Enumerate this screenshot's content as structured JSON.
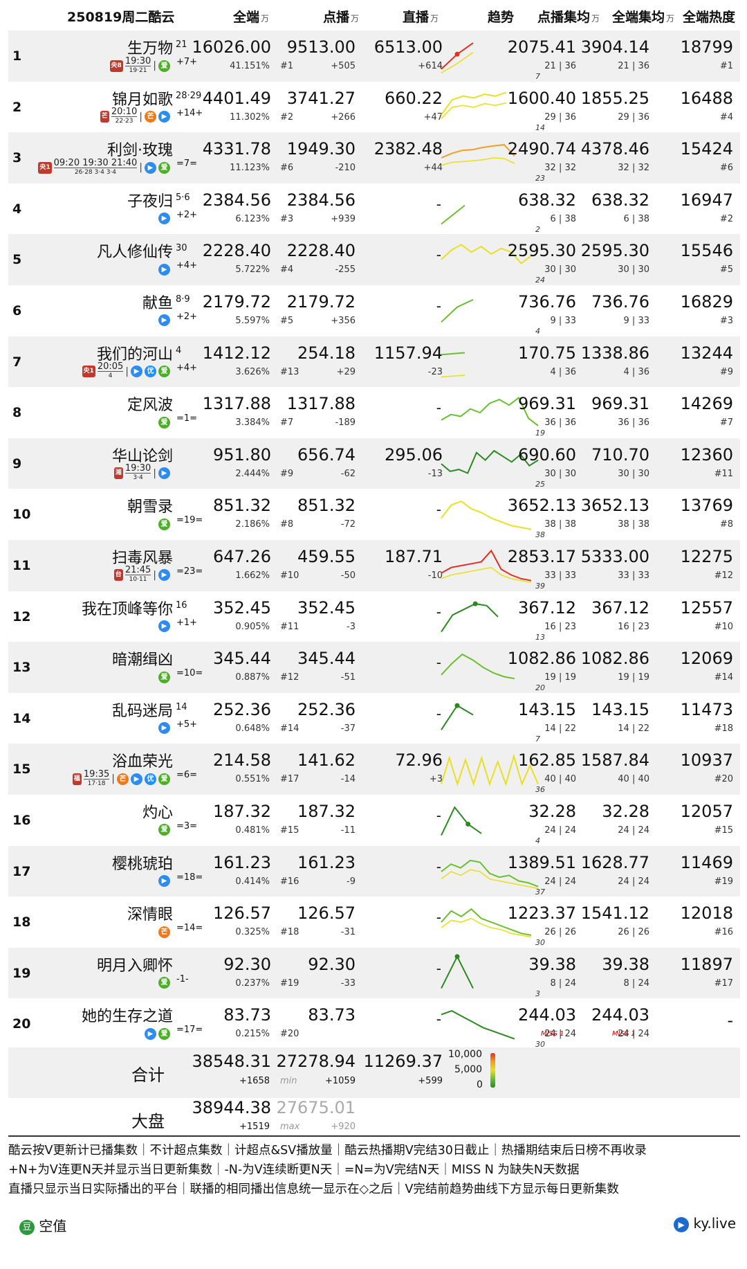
{
  "header": {
    "title": "250819周二酷云",
    "col_all": "全端",
    "col_vod": "点播",
    "col_live": "直播",
    "col_trend": "趋势",
    "col_vod_ep": "点播集均",
    "col_all_ep": "全端集均",
    "col_heat": "全端热度",
    "unit": "万"
  },
  "colors": {
    "green": "#6abf2e",
    "orange": "#f0a020",
    "red": "#e03020",
    "yellow": "#e8e020",
    "darkgreen": "#2a8a20"
  },
  "rows": [
    {
      "rank": "1",
      "name": "生万物",
      "ep": "21",
      "change": "+7+",
      "platform_icons": [
        "iqiyi-icon"
      ],
      "airing": {
        "channel": "央8",
        "time": "19:30",
        "eps": "19·21"
      },
      "all": "16026.00",
      "share": "41.151%",
      "vod": "9513.00",
      "vod_rank": "#1",
      "vod_delta": "+505",
      "live": "6513.00",
      "live_delta": "+614",
      "vod_ep": "2075.41",
      "vod_ep_sub": "21 | 36",
      "all_ep": "3904.14",
      "all_ep_sub": "21 | 36",
      "heat": "18799",
      "heat_rank": "#1",
      "trend_end": "7",
      "trend": [
        0.15,
        0.55,
        0.85
      ],
      "trend2": [
        0.05,
        0.3,
        0.6
      ],
      "line_color": "red"
    },
    {
      "rank": "2",
      "name": "锦月如歌",
      "ep": "28·29",
      "change": "+14+",
      "platform_icons": [
        "mango-icon",
        "tencent-icon"
      ],
      "airing": {
        "channel": "芒",
        "time": "20:10",
        "eps": "22·23"
      },
      "all": "4401.49",
      "share": "11.302%",
      "vod": "3741.27",
      "vod_rank": "#2",
      "vod_delta": "+266",
      "live": "660.22",
      "live_delta": "+47",
      "vod_ep": "1600.40",
      "vod_ep_sub": "29 | 36",
      "all_ep": "1855.25",
      "all_ep_sub": "29 | 36",
      "heat": "16488",
      "heat_rank": "#4",
      "trend_end": "14",
      "trend": [
        0.3,
        0.7,
        0.8,
        0.75,
        0.85,
        0.8,
        0.9
      ],
      "trend2": [
        0.2,
        0.5,
        0.55,
        0.5,
        0.6,
        0.55,
        0.62
      ],
      "line_color": "yellow"
    },
    {
      "rank": "3",
      "name": "利剑·玫瑰",
      "ep": "",
      "change": "=7=",
      "platform_icons": [
        "tencent-icon",
        "iqiyi-icon"
      ],
      "airing": {
        "channel": "央1",
        "time": "09:20 19:30 21:40",
        "eps": "26·28 3·4 3·4"
      },
      "all": "4331.78",
      "share": "11.123%",
      "vod": "1949.30",
      "vod_rank": "#6",
      "vod_delta": "-210",
      "live": "2382.48",
      "live_delta": "+44",
      "vod_ep": "2490.74",
      "vod_ep_sub": "32 | 32",
      "all_ep": "4378.46",
      "all_ep_sub": "32 | 32",
      "heat": "15424",
      "heat_rank": "#6",
      "trend_end": "23",
      "trend": [
        0.5,
        0.62,
        0.7,
        0.72,
        0.78,
        0.82,
        0.85,
        0.55
      ],
      "trend2": [
        0.3,
        0.38,
        0.4,
        0.42,
        0.45,
        0.5,
        0.48,
        0.35
      ],
      "line_color": "orange"
    },
    {
      "rank": "4",
      "name": "子夜归",
      "ep": "5·6",
      "change": "+2+",
      "platform_icons": [
        "tencent-icon"
      ],
      "airing": null,
      "all": "2384.56",
      "share": "6.123%",
      "vod": "2384.56",
      "vod_rank": "#3",
      "vod_delta": "+939",
      "live": "-",
      "live_delta": "",
      "vod_ep": "638.32",
      "vod_ep_sub": "6 | 38",
      "all_ep": "638.32",
      "all_ep_sub": "6 | 38",
      "heat": "16947",
      "heat_rank": "#2",
      "trend_end": "2",
      "trend": [
        0.1,
        0.6
      ],
      "trend2": [],
      "line_color": "green"
    },
    {
      "rank": "5",
      "name": "凡人修仙传",
      "ep": "30",
      "change": "+4+",
      "platform_icons": [
        "tencent-icon"
      ],
      "airing": null,
      "all": "2228.40",
      "share": "5.722%",
      "vod": "2228.40",
      "vod_rank": "#4",
      "vod_delta": "-255",
      "live": "-",
      "live_delta": "",
      "vod_ep": "2595.30",
      "vod_ep_sub": "30 | 30",
      "all_ep": "2595.30",
      "all_ep_sub": "30 | 30",
      "heat": "15546",
      "heat_rank": "#5",
      "trend_end": "24",
      "trend": [
        0.5,
        0.75,
        0.9,
        0.7,
        0.85,
        0.65,
        0.8,
        0.7,
        0.4,
        0.6
      ],
      "trend2": [],
      "line_color": "yellow"
    },
    {
      "rank": "6",
      "name": "献鱼",
      "ep": "8·9",
      "change": "+2+",
      "platform_icons": [
        "tencent-icon"
      ],
      "airing": null,
      "all": "2179.72",
      "share": "5.597%",
      "vod": "2179.72",
      "vod_rank": "#5",
      "vod_delta": "+356",
      "live": "-",
      "live_delta": "",
      "vod_ep": "736.76",
      "vod_ep_sub": "9 | 33",
      "all_ep": "736.76",
      "all_ep_sub": "9 | 33",
      "heat": "16829",
      "heat_rank": "#3",
      "trend_end": "4",
      "trend": [
        0.2,
        0.6,
        0.8
      ],
      "trend2": [],
      "line_color": "green"
    },
    {
      "rank": "7",
      "name": "我们的河山",
      "ep": "4",
      "change": "+4+",
      "platform_icons": [
        "tencent-icon",
        "youku-icon",
        "iqiyi-icon"
      ],
      "airing": {
        "channel": "央1",
        "time": "20:05",
        "eps": "4"
      },
      "all": "1412.12",
      "share": "3.626%",
      "vod": "254.18",
      "vod_rank": "#13",
      "vod_delta": "+29",
      "live": "1157.94",
      "live_delta": "-23",
      "vod_ep": "170.75",
      "vod_ep_sub": "4 | 36",
      "all_ep": "1338.86",
      "all_ep_sub": "4 | 36",
      "heat": "13244",
      "heat_rank": "#9",
      "trend_end": "",
      "trend": [
        0.7,
        0.75
      ],
      "trend2": [
        0.1,
        0.15
      ],
      "line_color": "green"
    },
    {
      "rank": "8",
      "name": "定风波",
      "ep": "",
      "change": "=1=",
      "platform_icons": [
        "iqiyi-icon"
      ],
      "airing": null,
      "all": "1317.88",
      "share": "3.384%",
      "vod": "1317.88",
      "vod_rank": "#7",
      "vod_delta": "-189",
      "live": "-",
      "live_delta": "",
      "vod_ep": "969.31",
      "vod_ep_sub": "36 | 36",
      "all_ep": "969.31",
      "all_ep_sub": "36 | 36",
      "heat": "14269",
      "heat_rank": "#7",
      "trend_end": "19",
      "trend": [
        0.3,
        0.45,
        0.4,
        0.6,
        0.5,
        0.75,
        0.85,
        0.7,
        0.9,
        0.35,
        0.15
      ],
      "trend2": [],
      "line_color": "green"
    },
    {
      "rank": "9",
      "name": "华山论剑",
      "ep": "",
      "change": "",
      "platform_icons": [
        "tencent-icon"
      ],
      "airing": {
        "channel": "湘",
        "time": "19:30",
        "eps": "3·4"
      },
      "all": "951.80",
      "share": "2.444%",
      "vod": "656.74",
      "vod_rank": "#9",
      "vod_delta": "-62",
      "live": "295.06",
      "live_delta": "-13",
      "vod_ep": "690.60",
      "vod_ep_sub": "30 | 30",
      "all_ep": "710.70",
      "all_ep_sub": "30 | 30",
      "heat": "12360",
      "heat_rank": "#11",
      "trend_end": "25",
      "trend": [
        0.5,
        0.3,
        0.35,
        0.25,
        0.8,
        0.6,
        0.85,
        0.7,
        0.55,
        0.75,
        0.45,
        0.6
      ],
      "trend2": [],
      "line_color": "darkgreen"
    },
    {
      "rank": "10",
      "name": "朝雪录",
      "ep": "",
      "change": "=19=",
      "platform_icons": [
        "iqiyi-icon"
      ],
      "airing": null,
      "all": "851.32",
      "share": "2.186%",
      "vod": "851.32",
      "vod_rank": "#8",
      "vod_delta": "-72",
      "live": "-",
      "live_delta": "",
      "vod_ep": "3652.13",
      "vod_ep_sub": "38 | 38",
      "all_ep": "3652.13",
      "all_ep_sub": "38 | 38",
      "heat": "13769",
      "heat_rank": "#8",
      "trend_end": "38",
      "trend": [
        0.4,
        0.75,
        0.85,
        0.65,
        0.55,
        0.4,
        0.3,
        0.2,
        0.15,
        0.1
      ],
      "trend2": [],
      "line_color": "yellow"
    },
    {
      "rank": "11",
      "name": "扫毒风暴",
      "ep": "",
      "change": "=23=",
      "platform_icons": [
        "tencent-icon"
      ],
      "airing": {
        "channel": "台",
        "time": "21:45",
        "eps": "10·11"
      },
      "all": "647.26",
      "share": "1.662%",
      "vod": "459.55",
      "vod_rank": "#10",
      "vod_delta": "-50",
      "live": "187.71",
      "live_delta": "-10",
      "vod_ep": "2853.17",
      "vod_ep_sub": "33 | 33",
      "all_ep": "5333.00",
      "all_ep_sub": "33 | 33",
      "heat": "12275",
      "heat_rank": "#12",
      "trend_end": "39",
      "trend": [
        0.3,
        0.45,
        0.5,
        0.55,
        0.6,
        0.9,
        0.4,
        0.25,
        0.15,
        0.1
      ],
      "trend2": [
        0.15,
        0.25,
        0.3,
        0.35,
        0.4,
        0.45,
        0.25,
        0.15,
        0.1,
        0.05
      ],
      "line_color": "red"
    },
    {
      "rank": "12",
      "name": "我在顶峰等你",
      "ep": "16",
      "change": "+1+",
      "platform_icons": [
        "tencent-icon"
      ],
      "airing": null,
      "all": "352.45",
      "share": "0.905%",
      "vod": "352.45",
      "vod_rank": "#11",
      "vod_delta": "-3",
      "live": "-",
      "live_delta": "",
      "vod_ep": "367.12",
      "vod_ep_sub": "16 | 23",
      "all_ep": "367.12",
      "all_ep_sub": "16 | 23",
      "heat": "12557",
      "heat_rank": "#10",
      "trend_end": "13",
      "trend": [
        0.1,
        0.55,
        0.7,
        0.85,
        0.8,
        0.5
      ],
      "trend2": [],
      "line_color": "darkgreen"
    },
    {
      "rank": "13",
      "name": "暗潮缉凶",
      "ep": "",
      "change": "=10=",
      "platform_icons": [
        "iqiyi-icon"
      ],
      "airing": null,
      "all": "345.44",
      "share": "0.887%",
      "vod": "345.44",
      "vod_rank": "#12",
      "vod_delta": "-51",
      "live": "-",
      "live_delta": "",
      "vod_ep": "1082.86",
      "vod_ep_sub": "19 | 19",
      "all_ep": "1082.86",
      "all_ep_sub": "19 | 19",
      "heat": "12069",
      "heat_rank": "#14",
      "trend_end": "20",
      "trend": [
        0.3,
        0.6,
        0.85,
        0.7,
        0.5,
        0.35,
        0.25,
        0.2
      ],
      "trend2": [],
      "line_color": "green"
    },
    {
      "rank": "14",
      "name": "乱码迷局",
      "ep": "14",
      "change": "+5+",
      "platform_icons": [
        "tencent-icon"
      ],
      "airing": null,
      "all": "252.36",
      "share": "0.648%",
      "vod": "252.36",
      "vod_rank": "#14",
      "vod_delta": "-37",
      "live": "-",
      "live_delta": "",
      "vod_ep": "143.15",
      "vod_ep_sub": "14 | 22",
      "all_ep": "143.15",
      "all_ep_sub": "14 | 22",
      "heat": "11473",
      "heat_rank": "#18",
      "trend_end": "7",
      "trend": [
        0.2,
        0.85,
        0.6
      ],
      "trend2": [],
      "line_color": "darkgreen"
    },
    {
      "rank": "15",
      "name": "浴血荣光",
      "ep": "",
      "change": "=6=",
      "platform_icons": [
        "mango-icon",
        "tencent-icon",
        "youku-icon",
        "iqiyi-icon"
      ],
      "airing": {
        "channel": "福",
        "time": "19:35",
        "eps": "17·18"
      },
      "all": "214.58",
      "share": "0.551%",
      "vod": "141.62",
      "vod_rank": "#17",
      "vod_delta": "-14",
      "live": "72.96",
      "live_delta": "+3",
      "vod_ep": "162.85",
      "vod_ep_sub": "40 | 40",
      "all_ep": "1587.84",
      "all_ep_sub": "40 | 40",
      "heat": "10937",
      "heat_rank": "#20",
      "trend_end": "36",
      "trend": [
        0.1,
        0.8,
        0.1,
        0.75,
        0.1,
        0.8,
        0.1,
        0.7,
        0.1,
        0.85,
        0.1,
        0.6,
        0.1
      ],
      "trend2": [],
      "line_color": "yellow"
    },
    {
      "rank": "16",
      "name": "灼心",
      "ep": "",
      "change": "=3=",
      "platform_icons": [
        "iqiyi-icon"
      ],
      "airing": null,
      "all": "187.32",
      "share": "0.481%",
      "vod": "187.32",
      "vod_rank": "#15",
      "vod_delta": "-11",
      "live": "-",
      "live_delta": "",
      "vod_ep": "32.28",
      "vod_ep_sub": "24 | 24",
      "all_ep": "32.28",
      "all_ep_sub": "24 | 24",
      "heat": "12057",
      "heat_rank": "#15",
      "trend_end": "4",
      "trend": [
        0.1,
        0.85,
        0.4,
        0.15
      ],
      "trend2": [],
      "line_color": "darkgreen"
    },
    {
      "rank": "17",
      "name": "樱桃琥珀",
      "ep": "",
      "change": "=18=",
      "platform_icons": [
        "tencent-icon"
      ],
      "airing": null,
      "all": "161.23",
      "share": "0.414%",
      "vod": "161.23",
      "vod_rank": "#16",
      "vod_delta": "-9",
      "live": "-",
      "live_delta": "",
      "vod_ep": "1389.51",
      "vod_ep_sub": "24 | 24",
      "all_ep": "1628.77",
      "all_ep_sub": "24 | 24",
      "heat": "11469",
      "heat_rank": "#19",
      "trend_end": "37",
      "trend": [
        0.5,
        0.7,
        0.6,
        0.8,
        0.75,
        0.45,
        0.35,
        0.4,
        0.25,
        0.2,
        0.1
      ],
      "trend2": [
        0.3,
        0.5,
        0.4,
        0.55,
        0.5,
        0.3,
        0.25,
        0.2,
        0.15,
        0.1,
        0.05
      ],
      "line_color": "green"
    },
    {
      "rank": "18",
      "name": "深情眼",
      "ep": "",
      "change": "=14=",
      "platform_icons": [
        "mango-icon"
      ],
      "airing": null,
      "all": "126.57",
      "share": "0.325%",
      "vod": "126.57",
      "vod_rank": "#18",
      "vod_delta": "-31",
      "live": "-",
      "live_delta": "",
      "vod_ep": "1223.37",
      "vod_ep_sub": "26 | 26",
      "all_ep": "1541.12",
      "all_ep_sub": "26 | 26",
      "heat": "12018",
      "heat_rank": "#16",
      "trend_end": "30",
      "trend": [
        0.5,
        0.8,
        0.65,
        0.85,
        0.6,
        0.5,
        0.4,
        0.3,
        0.2,
        0.15
      ],
      "trend2": [
        0.35,
        0.55,
        0.5,
        0.6,
        0.45,
        0.35,
        0.3,
        0.2,
        0.15,
        0.1
      ],
      "line_color": "green"
    },
    {
      "rank": "19",
      "name": "明月入卿怀",
      "ep": "",
      "change": "-1-",
      "platform_icons": [
        "iqiyi-icon"
      ],
      "airing": null,
      "all": "92.30",
      "share": "0.237%",
      "vod": "92.30",
      "vod_rank": "#19",
      "vod_delta": "-33",
      "live": "-",
      "live_delta": "",
      "vod_ep": "39.38",
      "vod_ep_sub": "8 | 24",
      "all_ep": "39.38",
      "all_ep_sub": "8 | 24",
      "heat": "11897",
      "heat_rank": "#17",
      "trend_end": "3",
      "trend": [
        0.1,
        0.95,
        0.1
      ],
      "trend2": [],
      "line_color": "darkgreen"
    },
    {
      "rank": "20",
      "name": "她的生存之道",
      "ep": "",
      "change": "=17=",
      "platform_icons": [
        "tencent-icon",
        "iqiyi-icon"
      ],
      "airing": null,
      "all": "83.73",
      "share": "0.215%",
      "vod": "83.73",
      "vod_rank": "#20",
      "vod_delta": "",
      "live": "-",
      "live_delta": "",
      "vod_ep": "244.03",
      "vod_ep_sub": "24 | 24",
      "all_ep": "244.03",
      "all_ep_sub": "24 | 24",
      "heat": "-",
      "heat_rank": "",
      "trend_end": "30",
      "trend": [
        0.75,
        0.85,
        0.7,
        0.55,
        0.4,
        0.3,
        0.2,
        0.1
      ],
      "trend2": [],
      "line_color": "darkgreen",
      "miss_label": "MISS 1"
    }
  ],
  "totals": {
    "label": "合计",
    "all": "38548.31",
    "all_delta": "+1658",
    "vod": "27278.94",
    "vod_tag": "min",
    "vod_delta": "+1059",
    "live": "11269.37",
    "live_delta": "+599"
  },
  "market": {
    "label": "大盘",
    "all": "38944.38",
    "all_delta": "+1519",
    "vod": "27675.01",
    "vod_tag": "max",
    "vod_delta": "+920"
  },
  "scale": {
    "top": "10,000",
    "mid": "5,000",
    "bottom": "0"
  },
  "notes": [
    "酷云按V更新计已播集数｜不计超点集数｜计超点&SV播放量｜酷云热播期V完结30日截止｜热播期结束后日榜不再收录",
    "+N+为V连更N天并显示当日更新集数｜-N-为V连续断更N天｜=N=为V完结N天｜MISS N 为缺失N天数据",
    "直播只显示当日实际播出的平台｜联播的相同播出信息统一显示在◇之后｜V完结前趋势曲线下方显示每日更新集数"
  ],
  "brand_left": "空值",
  "brand_right": "ky.live",
  "chart_data": {
    "type": "table",
    "title": "250819周二酷云",
    "columns": [
      "全端",
      "点播",
      "直播",
      "趋势",
      "点播集均",
      "全端集均",
      "全端热度"
    ],
    "unit": "万",
    "series": [
      {
        "name": "全端",
        "values": [
          16026.0,
          4401.49,
          4331.78,
          2384.56,
          2228.4,
          2179.72,
          1412.12,
          1317.88,
          951.8,
          851.32,
          647.26,
          352.45,
          345.44,
          252.36,
          214.58,
          187.32,
          161.23,
          126.57,
          92.3,
          83.73
        ]
      },
      {
        "name": "点播",
        "values": [
          9513.0,
          3741.27,
          1949.3,
          2384.56,
          2228.4,
          2179.72,
          254.18,
          1317.88,
          656.74,
          851.32,
          459.55,
          352.45,
          345.44,
          252.36,
          141.62,
          187.32,
          161.23,
          126.57,
          92.3,
          83.73
        ]
      },
      {
        "name": "直播",
        "values": [
          6513.0,
          660.22,
          2382.48,
          null,
          null,
          null,
          1157.94,
          null,
          295.06,
          null,
          187.71,
          null,
          null,
          null,
          72.96,
          null,
          null,
          null,
          null,
          null
        ]
      }
    ],
    "categories": [
      "生万物",
      "锦月如歌",
      "利剑·玫瑰",
      "子夜归",
      "凡人修仙传",
      "献鱼",
      "我们的河山",
      "定风波",
      "华山论剑",
      "朝雪录",
      "扫毒风暴",
      "我在顶峰等你",
      "暗潮缉凶",
      "乱码迷局",
      "浴血荣光",
      "灼心",
      "樱桃琥珀",
      "深情眼",
      "明月入卿怀",
      "她的生存之道"
    ]
  }
}
